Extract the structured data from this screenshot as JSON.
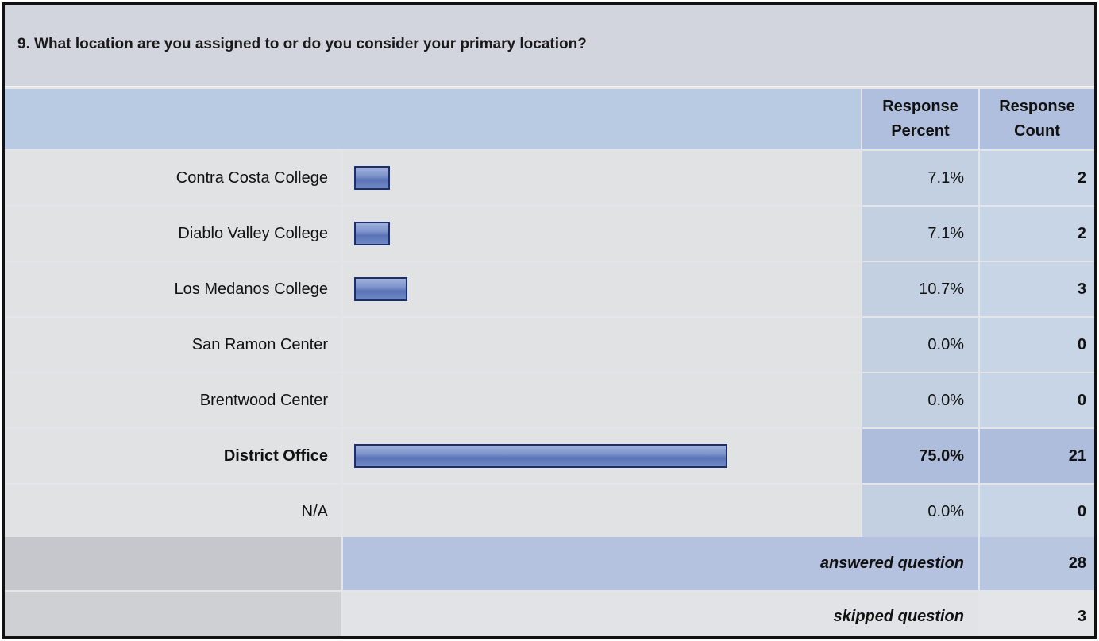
{
  "question": "9. What location are you assigned to or do you consider your primary location?",
  "header": {
    "percent_label_1": "Response",
    "percent_label_2": "Percent",
    "count_label_1": "Response",
    "count_label_2": "Count"
  },
  "rows": [
    {
      "label": "Contra Costa College",
      "percent": "7.1%",
      "count": "2"
    },
    {
      "label": "Diablo Valley College",
      "percent": "7.1%",
      "count": "2"
    },
    {
      "label": "Los Medanos College",
      "percent": "10.7%",
      "count": "3"
    },
    {
      "label": "San Ramon Center",
      "percent": "0.0%",
      "count": "0"
    },
    {
      "label": "Brentwood Center",
      "percent": "0.0%",
      "count": "0"
    },
    {
      "label": "District Office",
      "percent": "75.0%",
      "count": "21"
    },
    {
      "label": "N/A",
      "percent": "0.0%",
      "count": "0"
    }
  ],
  "summary": {
    "answered_label": "answered question",
    "answered_count": "28",
    "skipped_label": "skipped question",
    "skipped_count": "3"
  },
  "chart_data": {
    "type": "bar",
    "orientation": "horizontal",
    "categories": [
      "Contra Costa College",
      "Diablo Valley College",
      "Los Medanos College",
      "San Ramon Center",
      "Brentwood Center",
      "District Office",
      "N/A"
    ],
    "values": [
      7.1,
      7.1,
      10.7,
      0.0,
      0.0,
      75.0,
      0.0
    ],
    "counts": [
      2,
      2,
      3,
      0,
      0,
      21,
      0
    ],
    "title": "9. What location are you assigned to or do you consider your primary location?",
    "xlim": [
      0,
      100
    ],
    "grid": false,
    "bar_color": "#6f86c4",
    "highlight_category": "District Office"
  }
}
